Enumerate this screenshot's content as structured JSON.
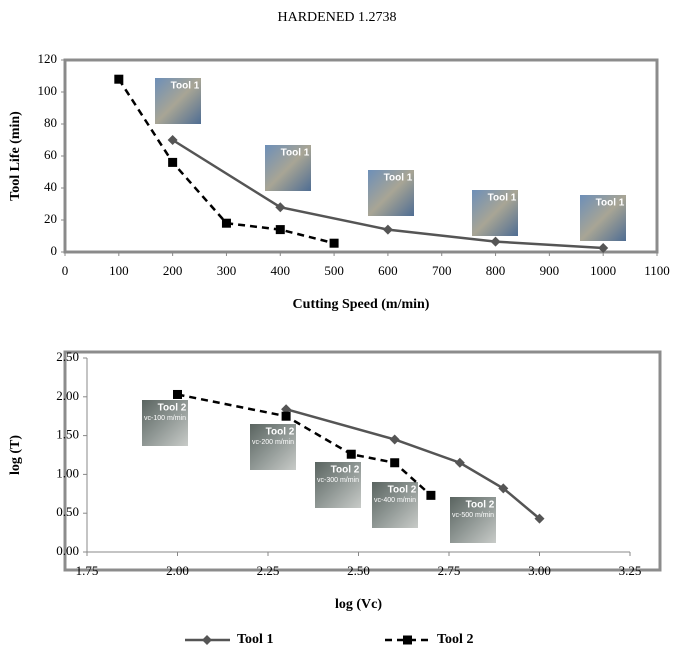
{
  "chart_data": [
    {
      "type": "line",
      "title": "HARDENED 1.2738",
      "x_label": "Cutting Speed (m/min)",
      "y_label": "Tool Life (min)",
      "xlim": [
        0,
        1100
      ],
      "xticks": [
        0,
        100,
        200,
        300,
        400,
        500,
        600,
        700,
        800,
        900,
        1000,
        1100
      ],
      "ylim": [
        0,
        120
      ],
      "yticks": [
        0,
        20,
        40,
        60,
        80,
        100,
        120
      ],
      "series": [
        {
          "name": "Tool 1",
          "color": "#555555",
          "marker": "diamond",
          "dash": false,
          "x": [
            200,
            400,
            600,
            800,
            1000
          ],
          "values": [
            70,
            28,
            14,
            6.5,
            2.5
          ]
        },
        {
          "name": "Tool 2",
          "color": "#000000",
          "marker": "square",
          "dash": true,
          "x": [
            100,
            200,
            300,
            400,
            500
          ],
          "values": [
            108,
            56,
            18,
            14,
            5.5
          ]
        }
      ],
      "annotations": [
        {
          "label": "Tool 1"
        },
        {
          "label": "Tool 1"
        },
        {
          "label": "Tool 1"
        },
        {
          "label": "Tool 1"
        },
        {
          "label": "Tool 1"
        }
      ]
    },
    {
      "type": "line",
      "x_label": "log (Vc)",
      "y_label": "log (T)",
      "xlim": [
        1.75,
        3.25
      ],
      "xticks": [
        {
          "value": 1.75,
          "label": "1.75"
        },
        {
          "value": 2,
          "label": "2.00"
        },
        {
          "value": 2.25,
          "label": "2.25"
        },
        {
          "value": 2.5,
          "label": "2.50"
        },
        {
          "value": 2.75,
          "label": "2.75"
        },
        {
          "value": 3,
          "label": "3.00"
        },
        {
          "value": 3.25,
          "label": "3.25"
        }
      ],
      "ylim": [
        0,
        2.5
      ],
      "yticks": [
        {
          "value": 0,
          "label": "0.00"
        },
        {
          "value": 0.5,
          "label": "0.50"
        },
        {
          "value": 1,
          "label": "1.00"
        },
        {
          "value": 1.5,
          "label": "1.50"
        },
        {
          "value": 2,
          "label": "2.00"
        },
        {
          "value": 2.5,
          "label": "2.50"
        }
      ],
      "legend": "bottom",
      "series": [
        {
          "name": "Tool 1",
          "color": "#555555",
          "marker": "diamond",
          "dash": false,
          "x": [
            2.3,
            2.6,
            2.78,
            2.9,
            3.0
          ],
          "values": [
            1.84,
            1.45,
            1.15,
            0.82,
            0.43
          ]
        },
        {
          "name": "Tool 2",
          "color": "#000000",
          "marker": "square",
          "dash": true,
          "x": [
            2.0,
            2.3,
            2.48,
            2.6,
            2.7
          ],
          "values": [
            2.03,
            1.75,
            1.26,
            1.15,
            0.73
          ]
        }
      ],
      "annotations": [
        {
          "label": "Tool 2",
          "note": "vc-100 m/min"
        },
        {
          "label": "Tool 2",
          "note": "vc-200 m/min"
        },
        {
          "label": "Tool 2",
          "note": "vc-300 m/min"
        },
        {
          "label": "Tool 2",
          "note": "vc-400 m/min"
        },
        {
          "label": "Tool 2",
          "note": "vc-500 m/min"
        }
      ]
    }
  ]
}
